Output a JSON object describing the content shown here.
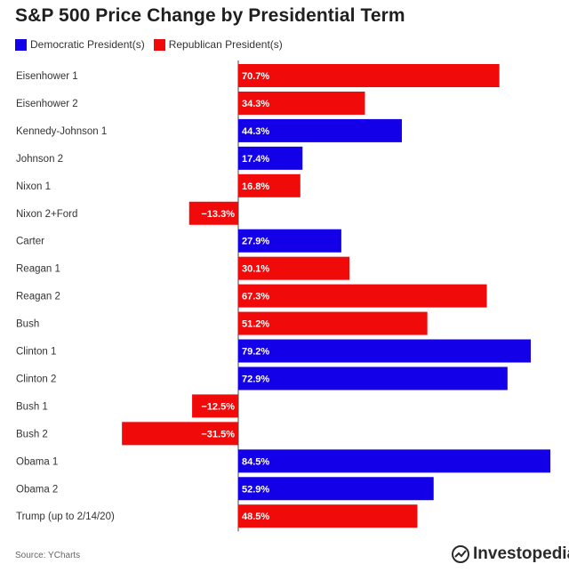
{
  "title": "S&P 500 Price Change by Presidential Term",
  "legend": {
    "democratic_label": "Democratic President(s)",
    "republican_label": "Republican President(s)"
  },
  "colors": {
    "democratic": "#1400e8",
    "republican": "#f00a0a"
  },
  "source": "Source: YCharts",
  "brand": "Investopedia",
  "chart_data": {
    "type": "bar",
    "orientation": "horizontal",
    "title": "S&P 500 Price Change by Presidential Term",
    "unit": "%",
    "categories": [
      "Eisenhower 1",
      "Eisenhower 2",
      "Kennedy-Johnson 1",
      "Johnson 2",
      "Nixon 1",
      "Nixon 2+Ford",
      "Carter",
      "Reagan 1",
      "Reagan 2",
      "Bush",
      "Clinton 1",
      "Clinton 2",
      "Bush 1",
      "Bush 2",
      "Obama 1",
      "Obama 2",
      "Trump (up to 2/14/20)"
    ],
    "values": [
      70.7,
      34.3,
      44.3,
      17.4,
      16.8,
      -13.3,
      27.9,
      30.1,
      67.3,
      51.2,
      79.2,
      72.9,
      -12.5,
      -31.5,
      84.5,
      52.9,
      48.5
    ],
    "labels": [
      "70.7%",
      "34.3%",
      "44.3%",
      "17.4%",
      "16.8%",
      "−13.3%",
      "27.9%",
      "30.1%",
      "67.3%",
      "51.2%",
      "79.2%",
      "72.9%",
      "−12.5%",
      "−31.5%",
      "84.5%",
      "52.9%",
      "48.5%"
    ],
    "party": [
      "R",
      "R",
      "D",
      "D",
      "R",
      "R",
      "D",
      "R",
      "R",
      "R",
      "D",
      "D",
      "R",
      "R",
      "D",
      "D",
      "R"
    ],
    "series": [
      {
        "name": "Democratic President(s)",
        "party": "D"
      },
      {
        "name": "Republican President(s)",
        "party": "R"
      }
    ],
    "legend_position": "top-left",
    "grid": false
  }
}
